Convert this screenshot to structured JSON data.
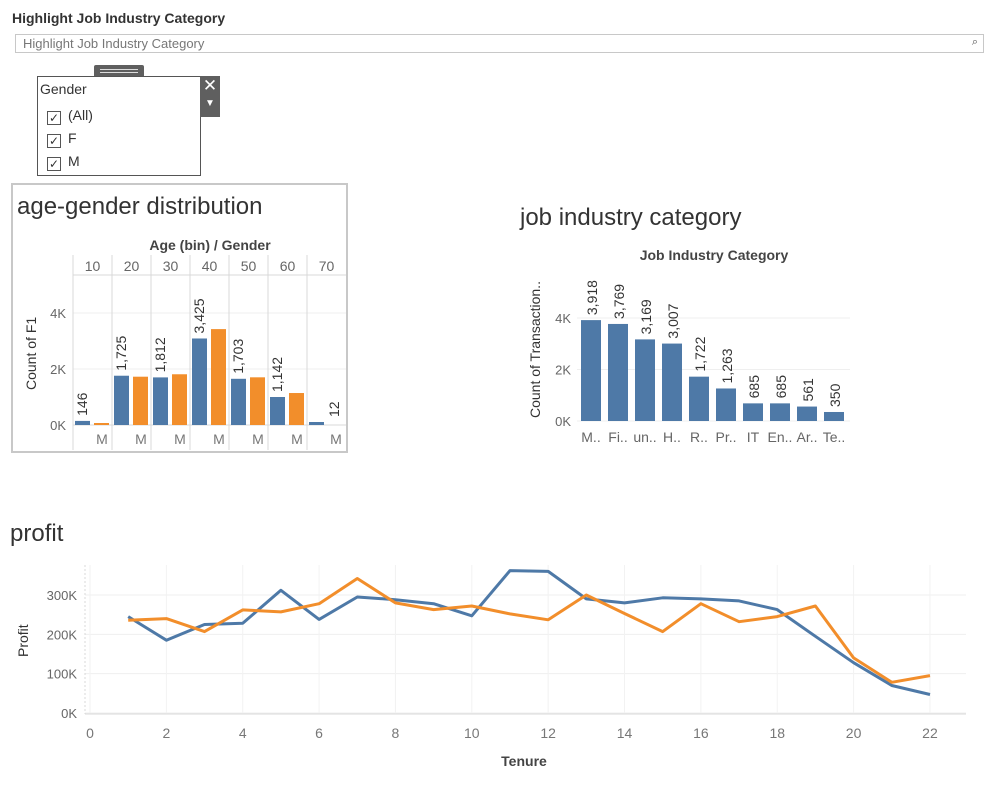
{
  "highlight": {
    "title": "Highlight Job Industry Category",
    "placeholder": "Highlight Job Industry Category",
    "search_icon": "search-icon"
  },
  "gender_filter": {
    "title": "Gender",
    "items": [
      {
        "label": "(All)",
        "checked": true
      },
      {
        "label": "F",
        "checked": true
      },
      {
        "label": "M",
        "checked": true
      }
    ],
    "close_icon": "close-icon",
    "menu_icon": "dropdown-arrow-icon"
  },
  "colors": {
    "blue": "#4e79a7",
    "orange": "#f28e2b"
  },
  "age_chart": {
    "title": "age-gender distribution",
    "header": "Age (bin)  /  Gender",
    "ylabel": "Count of F1",
    "bins": [
      "10",
      "20",
      "30",
      "40",
      "50",
      "60",
      "70"
    ],
    "gender_tick": "M",
    "yticks": [
      "0K",
      "2K",
      "4K"
    ]
  },
  "job_chart": {
    "title": "job industry category",
    "header": "Job Industry Category",
    "ylabel": "Count of Transaction..",
    "yticks": [
      "0K",
      "2K",
      "4K"
    ]
  },
  "profit_chart": {
    "title": "profit",
    "xlabel": "Tenure",
    "ylabel": "Profit",
    "yticks": [
      "0K",
      "100K",
      "200K",
      "300K"
    ],
    "xticks": [
      "0",
      "2",
      "4",
      "6",
      "8",
      "10",
      "12",
      "14",
      "16",
      "18",
      "20",
      "22"
    ]
  },
  "chart_data": [
    {
      "type": "bar",
      "title": "age-gender distribution",
      "xlabel": "Age (bin)  /  Gender",
      "ylabel": "Count of F1",
      "ylim": [
        0,
        4700
      ],
      "categories": [
        "10",
        "20",
        "30",
        "40",
        "50",
        "60",
        "70"
      ],
      "series": [
        {
          "name": "F",
          "values": [
            20,
            1725,
            1812,
            3425,
            1703,
            1142,
            0
          ]
        },
        {
          "name": "M",
          "values": [
            146,
            1760,
            1700,
            3090,
            1650,
            1000,
            12
          ]
        }
      ],
      "data_labels": [
        {
          "category": "10",
          "label": "146"
        },
        {
          "category": "20",
          "label": "1,725"
        },
        {
          "category": "30",
          "label": "1,812"
        },
        {
          "category": "40",
          "label": "3,425"
        },
        {
          "category": "50",
          "label": "1,703"
        },
        {
          "category": "60",
          "label": "1,142"
        },
        {
          "category": "70",
          "label": "12"
        }
      ]
    },
    {
      "type": "bar",
      "title": "job industry category",
      "xlabel": "Job Industry Category",
      "ylabel": "Count of Transaction..",
      "ylim": [
        0,
        4700
      ],
      "categories": [
        "M..",
        "Fi..",
        "un..",
        "H..",
        "R..",
        "Pr..",
        "IT",
        "En..",
        "Ar..",
        "Te.."
      ],
      "values": [
        3918,
        3769,
        3169,
        3007,
        1722,
        1263,
        685,
        685,
        561,
        350
      ],
      "labels": [
        "3,918",
        "3,769",
        "3,169",
        "3,007",
        "1,722",
        "1,263",
        "685",
        "685",
        "561",
        "350"
      ]
    },
    {
      "type": "line",
      "title": "profit",
      "xlabel": "Tenure",
      "ylabel": "Profit",
      "xlim": [
        0,
        23
      ],
      "ylim": [
        0,
        340000
      ],
      "series": [
        {
          "x": [
            1,
            2,
            3,
            4,
            5,
            6,
            7,
            8,
            9,
            10,
            11,
            12,
            13,
            14,
            15,
            16,
            17,
            18,
            19,
            20,
            21,
            22
          ],
          "y": [
            245000,
            185000,
            225000,
            228000,
            312000,
            238000,
            295000,
            288000,
            278000,
            247000,
            362000,
            360000,
            290000,
            280000,
            293000,
            290000,
            285000,
            263000,
            195000,
            128000,
            70000,
            47000
          ]
        },
        {
          "x": [
            1,
            2,
            3,
            4,
            5,
            6,
            7,
            8,
            9,
            10,
            11,
            12,
            13,
            14,
            15,
            16,
            17,
            18,
            19,
            20,
            21,
            22
          ],
          "y": [
            236000,
            240000,
            207000,
            262000,
            257000,
            278000,
            342000,
            280000,
            263000,
            272000,
            252000,
            237000,
            300000,
            253000,
            207000,
            278000,
            232000,
            245000,
            272000,
            140000,
            78000,
            95000
          ]
        }
      ]
    }
  ]
}
